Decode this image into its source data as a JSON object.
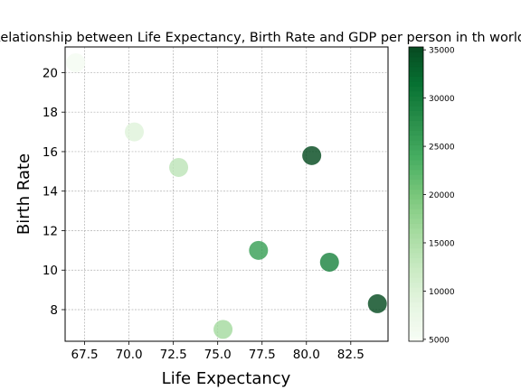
{
  "chart_data": {
    "type": "scatter",
    "title": "Relationship between Life Expectancy, Birth Rate and GDP per person in th world",
    "xlabel": "Life Expectancy",
    "ylabel": "Birth Rate",
    "xlim": [
      66.4,
      84.6
    ],
    "ylim": [
      6.4,
      21.3
    ],
    "xticks": [
      "67.5",
      "70.0",
      "72.5",
      "75.0",
      "77.5",
      "80.0",
      "82.5"
    ],
    "yticks": [
      "8",
      "10",
      "12",
      "14",
      "16",
      "18",
      "20"
    ],
    "grid": true,
    "colorbar": {
      "range": [
        4800,
        35300
      ],
      "ticks": [
        "5000",
        "10000",
        "15000",
        "20000",
        "25000",
        "30000",
        "35000"
      ],
      "colormap": "Greens"
    },
    "points": [
      {
        "x": 67.0,
        "y": 20.5,
        "gdp": 5500
      },
      {
        "x": 70.3,
        "y": 17.0,
        "gdp": 9500
      },
      {
        "x": 72.8,
        "y": 15.2,
        "gdp": 13500
      },
      {
        "x": 75.3,
        "y": 7.0,
        "gdp": 16000
      },
      {
        "x": 77.3,
        "y": 11.0,
        "gdp": 25500
      },
      {
        "x": 80.3,
        "y": 15.8,
        "gdp": 35000
      },
      {
        "x": 81.3,
        "y": 10.4,
        "gdp": 29000
      },
      {
        "x": 84.0,
        "y": 8.3,
        "gdp": 35000
      }
    ]
  }
}
